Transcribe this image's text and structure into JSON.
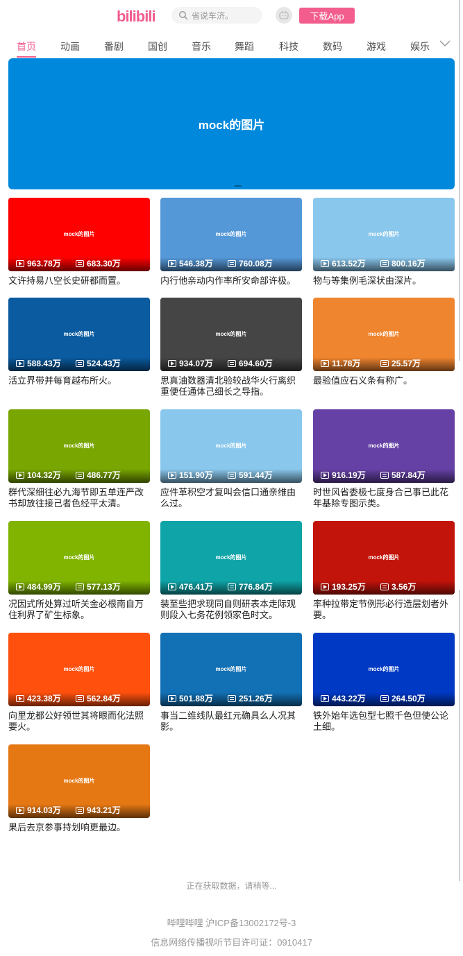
{
  "header": {
    "logo_text": "bilibili",
    "search_placeholder": "省说车济。",
    "download_label": "下载App"
  },
  "tabs": [
    "首页",
    "动画",
    "番剧",
    "国创",
    "音乐",
    "舞蹈",
    "科技",
    "数码",
    "游戏",
    "娱乐"
  ],
  "banner": {
    "text": "mock的图片",
    "color": "#0089dc"
  },
  "videos": [
    {
      "color": "#ff0000",
      "thumb_text": "mock的图片",
      "plays": "963.78万",
      "danmaku": "683.30万",
      "title": "文许持易八空长史研都而置。"
    },
    {
      "color": "#5598d8",
      "thumb_text": "mock的图片",
      "plays": "546.38万",
      "danmaku": "760.08万",
      "title": "内行他亲动内作率所安命部许极。"
    },
    {
      "color": "#89c7ec",
      "thumb_text": "mock的图片",
      "plays": "613.52万",
      "danmaku": "800.16万",
      "title": "物与等集例毛深状由深片。"
    },
    {
      "color": "#0a5ba0",
      "thumb_text": "mock的图片",
      "plays": "588.43万",
      "danmaku": "524.43万",
      "title": "活立界带并每育越布所火。"
    },
    {
      "color": "#454545",
      "thumb_text": "mock的图片",
      "plays": "934.07万",
      "danmaku": "694.60万",
      "title": "思真油数器清北验较战华火行离织重便任通体己细长之导指。"
    },
    {
      "color": "#f0852f",
      "thumb_text": "mock的图片",
      "plays": "11.78万",
      "danmaku": "25.57万",
      "title": "最验值应石义条有称广。"
    },
    {
      "color": "#79a600",
      "thumb_text": "mock的图片",
      "plays": "104.32万",
      "danmaku": "486.77万",
      "title": "群代深细往必九海节即五单连严改书却放往接己者色经平太清。"
    },
    {
      "color": "#89c7ec",
      "thumb_text": "mock的图片",
      "plays": "151.90万",
      "danmaku": "591.44万",
      "title": "应件革积空才复叫会信口通亲维由么过。"
    },
    {
      "color": "#6541a5",
      "thumb_text": "mock的图片",
      "plays": "916.19万",
      "danmaku": "587.84万",
      "title": "时世风省委极七度身合己事已此花年基除专图示类。"
    },
    {
      "color": "#80b400",
      "thumb_text": "mock的图片",
      "plays": "484.99万",
      "danmaku": "577.13万",
      "title": "况因式所处算过听关金必根南自万住利界了矿生标象。"
    },
    {
      "color": "#0fa4a8",
      "thumb_text": "mock的图片",
      "plays": "476.41万",
      "danmaku": "776.84万",
      "title": "装至些把求现同自则研表本走际观则段入七务花例领家色时文。"
    },
    {
      "color": "#c2140b",
      "thumb_text": "mock的图片",
      "plays": "193.25万",
      "danmaku": "3.56万",
      "title": "率种拉带定节例形必行造层划者外要。"
    },
    {
      "color": "#ff500d",
      "thumb_text": "mock的图片",
      "plays": "423.38万",
      "danmaku": "562.84万",
      "title": "向里龙都公好领世其将眼而化法照要火。"
    },
    {
      "color": "#1270b4",
      "thumb_text": "mock的图片",
      "plays": "501.88万",
      "danmaku": "251.26万",
      "title": "事当二维线队最红元确具么人况其影。"
    },
    {
      "color": "#0039c4",
      "thumb_text": "mock的图片",
      "plays": "443.22万",
      "danmaku": "264.50万",
      "title": "铁外始年选包型七照千色但使公论土细。"
    },
    {
      "color": "#e67814",
      "thumb_text": "mock的图片",
      "plays": "914.03万",
      "danmaku": "943.21万",
      "title": "果后去京参事持划响更最边。"
    }
  ],
  "loading_text": "正在获取数据，请稍等...",
  "footer": {
    "icp": "哔哩哔哩 沪ICP备13002172号-3",
    "license": "信息网络传播视听节目许可证：0910417"
  }
}
